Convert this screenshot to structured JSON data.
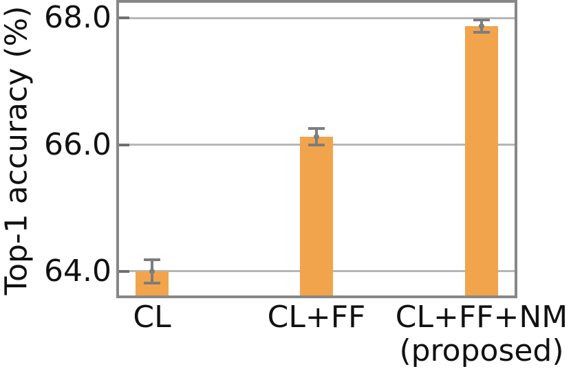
{
  "chart_data": {
    "type": "bar",
    "title": "",
    "xlabel": "",
    "ylabel": "Top-1 accuracy (%)",
    "categories": [
      "CL",
      "CL+FF",
      "CL+FF+NM (proposed)"
    ],
    "category_lines": [
      [
        "CL"
      ],
      [
        "CL+FF"
      ],
      [
        "CL+FF+NM",
        "(proposed)"
      ]
    ],
    "values": [
      64.0,
      66.12,
      67.87
    ],
    "errors": [
      0.18,
      0.13,
      0.1
    ],
    "error_style": "caps-with-center-dot",
    "yticks": {
      "values": [
        64.0,
        66.0,
        68.0
      ],
      "labels": [
        "64.0",
        "66.0",
        "68.0"
      ]
    },
    "ylim": [
      63.62,
      68.24
    ],
    "grid": "horizontal",
    "legend": "none",
    "colors": {
      "bar": "#F1A44C",
      "error": "#7d7d7d",
      "spine": "#878787",
      "grid": "#b6b6b6",
      "tick": "#6f6f6f",
      "text": "#111111",
      "background": "#ffffff"
    }
  }
}
